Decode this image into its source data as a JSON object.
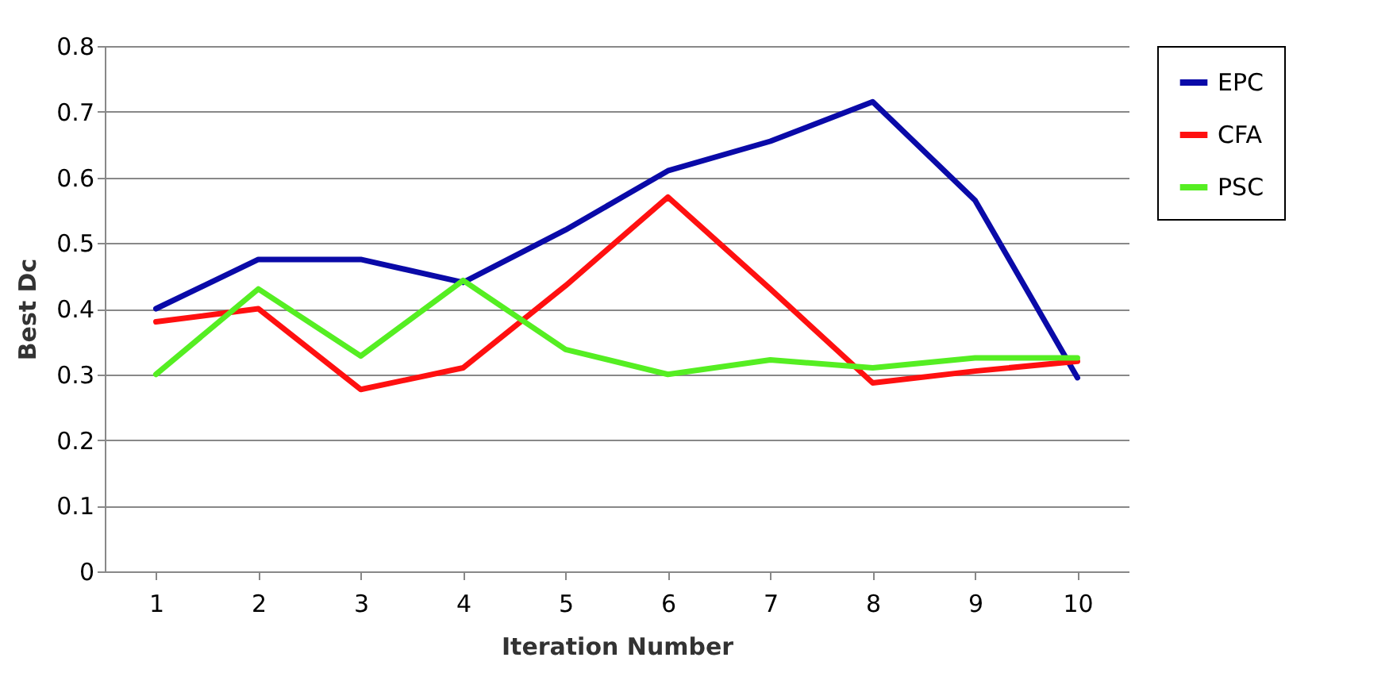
{
  "chart_data": {
    "type": "line",
    "xlabel": "Iteration Number",
    "ylabel": "Best Dc",
    "categories": [
      "1",
      "2",
      "3",
      "4",
      "5",
      "6",
      "7",
      "8",
      "9",
      "10"
    ],
    "series": [
      {
        "name": "EPC",
        "color": "#0a0aa8",
        "values": [
          0.4,
          0.475,
          0.475,
          0.44,
          0.52,
          0.61,
          0.655,
          0.715,
          0.565,
          0.295
        ]
      },
      {
        "name": "CFA",
        "color": "#ff1010",
        "values": [
          0.38,
          0.4,
          0.277,
          0.31,
          0.435,
          0.57,
          0.43,
          0.287,
          0.305,
          0.32
        ]
      },
      {
        "name": "PSC",
        "color": "#55ee22",
        "values": [
          0.3,
          0.43,
          0.328,
          0.443,
          0.338,
          0.3,
          0.322,
          0.31,
          0.325,
          0.325
        ]
      }
    ],
    "ylim": [
      0,
      0.8
    ],
    "yticks": [
      0,
      0.1,
      0.2,
      0.3,
      0.4,
      0.5,
      0.6,
      0.7,
      0.8
    ],
    "grid": "y",
    "legend": "right",
    "marker": "none",
    "line_style": "solid"
  }
}
